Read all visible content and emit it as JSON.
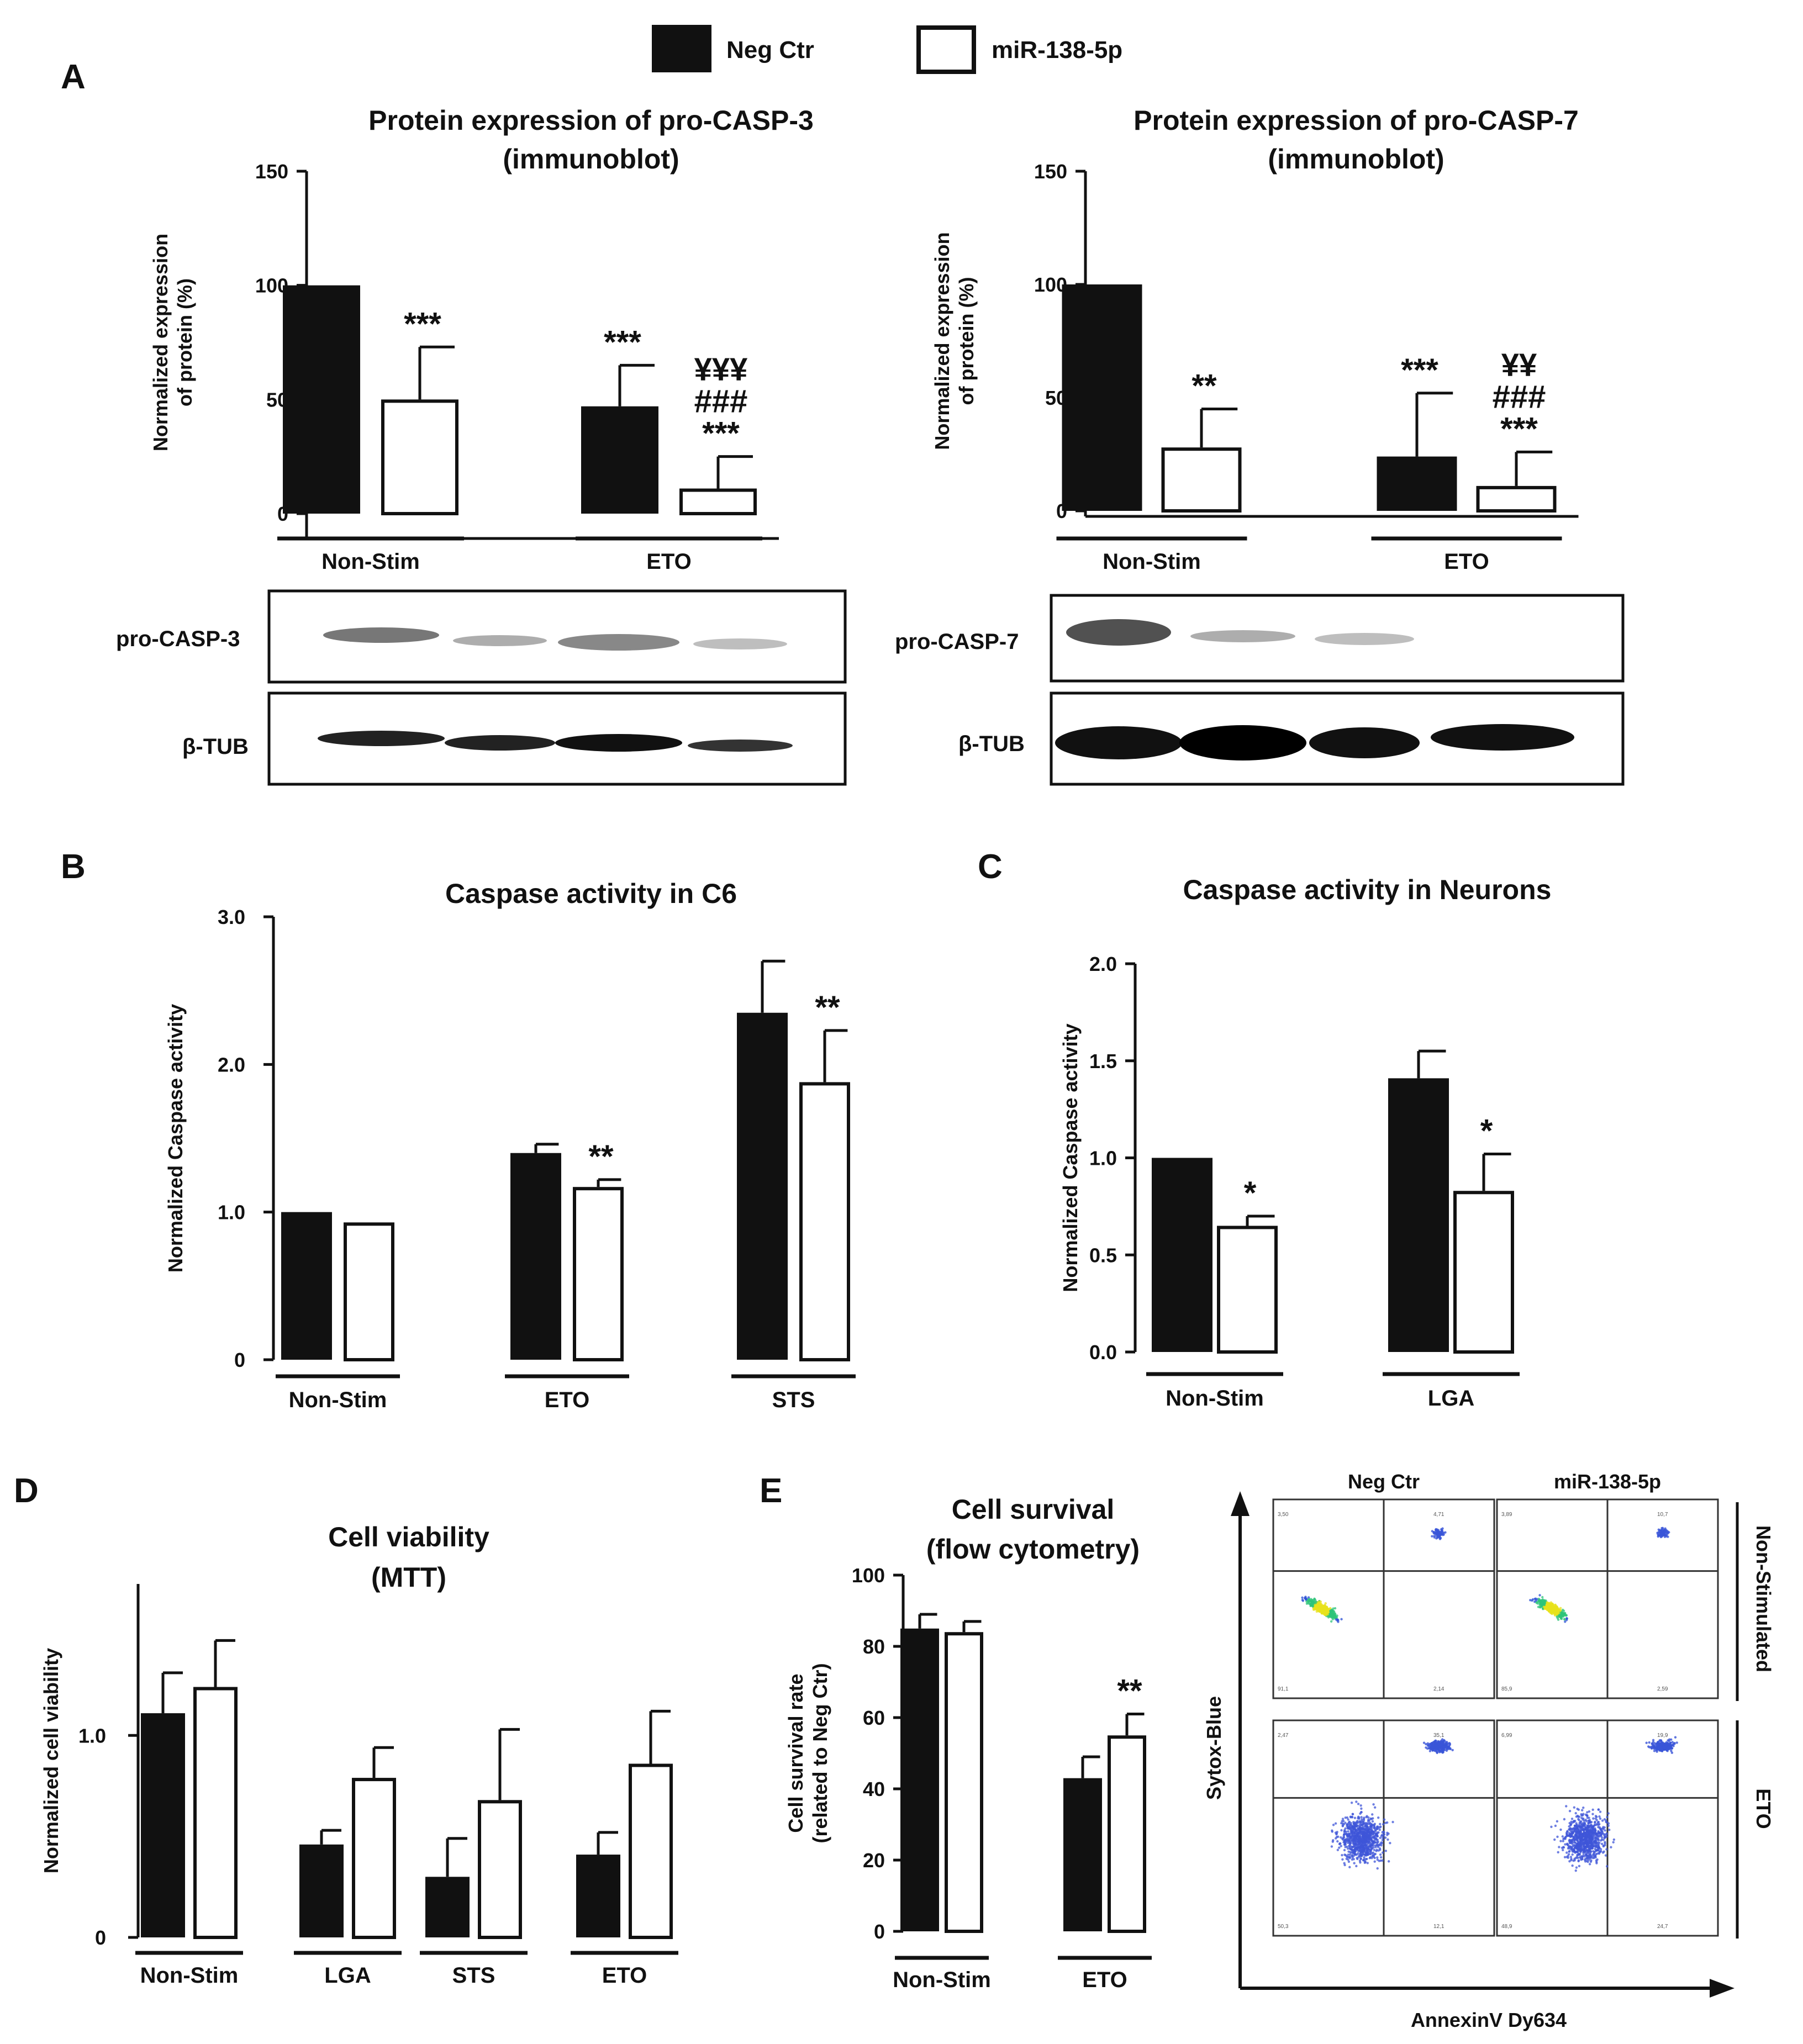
{
  "legend": [
    {
      "label": "Neg Ctr",
      "fill": "#111111"
    },
    {
      "label": "miR-138-5p",
      "fill": "#ffffff"
    }
  ],
  "colors": {
    "neg": "#111111",
    "mir": "#ffffff",
    "axis": "#111111"
  },
  "blots": {
    "casp3": {
      "label": "pro-CASP-3",
      "loading_label": "β-TUB"
    },
    "casp7": {
      "label": "pro-CASP-7",
      "loading_label": "β-TUB"
    }
  },
  "flow": {
    "col_labels": [
      "Neg Ctr",
      "miR-138-5p"
    ],
    "row_labels": [
      "Non-Stimulated",
      "ETO"
    ],
    "xaxis": "AnnexinV Dy634",
    "yaxis": "Sytox-Blue",
    "quadrants": [
      [
        "3,50",
        "4,71",
        "91,1",
        "2,14"
      ],
      [
        "3,89",
        "10,7",
        "85,9",
        "2,59"
      ],
      [
        "2,47",
        "35,1",
        "50,3",
        "12,1"
      ],
      [
        "6,99",
        "19,9",
        "48,9",
        "24,7"
      ]
    ]
  },
  "chart_data": [
    {
      "id": "A1",
      "panel_label": "A",
      "type": "bar",
      "title": [
        "Protein expression of pro-CASP-3",
        "(immunoblot)"
      ],
      "ylabel": [
        "Normalized expression",
        "of protein (%)"
      ],
      "ylim": [
        0,
        150
      ],
      "yticks": [
        0,
        50,
        100,
        150
      ],
      "categories": [
        "Non-Stim",
        "ETO"
      ],
      "series": [
        {
          "name": "Neg Ctr",
          "values": [
            100,
            47
          ],
          "errors": [
            0,
            18
          ],
          "sig": [
            "",
            "***"
          ]
        },
        {
          "name": "miR-138-5p",
          "values": [
            50,
            11
          ],
          "errors": [
            23,
            14
          ],
          "sig": [
            "***",
            "¥¥¥\n###\n***"
          ]
        }
      ]
    },
    {
      "id": "A2",
      "panel_label": "",
      "type": "bar",
      "title": [
        "Protein expression of pro-CASP-7",
        "(immunoblot)"
      ],
      "ylabel": [
        "Normalized expression",
        "of protein (%)"
      ],
      "ylim": [
        0,
        150
      ],
      "yticks": [
        0,
        50,
        100,
        150
      ],
      "categories": [
        "Non-Stim",
        "ETO"
      ],
      "series": [
        {
          "name": "Neg Ctr",
          "values": [
            100,
            24
          ],
          "errors": [
            0,
            28
          ],
          "sig": [
            "",
            "***"
          ]
        },
        {
          "name": "miR-138-5p",
          "values": [
            28,
            11
          ],
          "errors": [
            17,
            15
          ],
          "sig": [
            "**",
            "¥¥\n###\n***"
          ]
        }
      ]
    },
    {
      "id": "B",
      "panel_label": "B",
      "type": "bar",
      "title": [
        "Caspase activity in C6"
      ],
      "ylabel": [
        "Normalized Caspase activity"
      ],
      "ylim": [
        0,
        3.0
      ],
      "yticks": [
        0,
        1.0,
        2.0,
        3.0
      ],
      "ytick_labels": [
        "0",
        "1.0",
        "2.0",
        "3.0"
      ],
      "categories": [
        "Non-Stim",
        "ETO",
        "STS"
      ],
      "series": [
        {
          "name": "Neg Ctr",
          "values": [
            1.0,
            1.4,
            2.35
          ],
          "errors": [
            0,
            0.06,
            0.35
          ],
          "sig": [
            "",
            "",
            ""
          ]
        },
        {
          "name": "miR-138-5p",
          "values": [
            0.93,
            1.17,
            1.88
          ],
          "errors": [
            0,
            0.05,
            0.35
          ],
          "sig": [
            "",
            "**",
            "**"
          ]
        }
      ]
    },
    {
      "id": "C",
      "panel_label": "C",
      "type": "bar",
      "title": [
        "Caspase activity in Neurons"
      ],
      "ylabel": [
        "Normalized Caspase activity"
      ],
      "ylim": [
        0,
        2.0
      ],
      "yticks": [
        0,
        0.5,
        1.0,
        1.5,
        2.0
      ],
      "ytick_labels": [
        "0.0",
        "0.5",
        "1.0",
        "1.5",
        "2.0"
      ],
      "categories": [
        "Non-Stim",
        "LGA"
      ],
      "series": [
        {
          "name": "Neg Ctr",
          "values": [
            1.0,
            1.41
          ],
          "errors": [
            0,
            0.14
          ],
          "sig": [
            "",
            ""
          ]
        },
        {
          "name": "miR-138-5p",
          "values": [
            0.65,
            0.83
          ],
          "errors": [
            0.05,
            0.19
          ],
          "sig": [
            "*",
            "*"
          ]
        }
      ]
    },
    {
      "id": "D",
      "panel_label": "D",
      "type": "bar",
      "title": [
        "Cell viability",
        "(MTT)"
      ],
      "ylabel": [
        "Normalized cell viability"
      ],
      "ylim": [
        0,
        1.75
      ],
      "yticks": [
        0,
        1.0
      ],
      "ytick_labels": [
        "0",
        "1.0"
      ],
      "categories": [
        "Non-Stim",
        "LGA",
        "STS",
        "ETO"
      ],
      "series": [
        {
          "name": "Neg Ctr",
          "values": [
            1.11,
            0.46,
            0.3,
            0.41
          ],
          "errors": [
            0.2,
            0.07,
            0.19,
            0.11
          ],
          "sig": [
            "",
            "",
            "",
            ""
          ]
        },
        {
          "name": "miR-138-5p",
          "values": [
            1.24,
            0.79,
            0.68,
            0.86
          ],
          "errors": [
            0.23,
            0.15,
            0.35,
            0.26
          ],
          "sig": [
            "",
            "",
            "",
            ""
          ]
        }
      ]
    },
    {
      "id": "E",
      "panel_label": "E",
      "type": "bar",
      "title": [
        "Cell survival",
        "(flow cytometry)"
      ],
      "ylabel": [
        "Cell survival rate",
        "(related to Neg Ctr)"
      ],
      "ylim": [
        0,
        100
      ],
      "yticks": [
        0,
        20,
        40,
        60,
        80,
        100
      ],
      "categories": [
        "Non-Stim",
        "ETO"
      ],
      "series": [
        {
          "name": "Neg Ctr",
          "values": [
            85,
            43
          ],
          "errors": [
            4,
            6
          ],
          "sig": [
            "",
            ""
          ]
        },
        {
          "name": "miR-138-5p",
          "values": [
            84,
            55
          ],
          "errors": [
            3,
            6
          ],
          "sig": [
            "",
            "**"
          ]
        }
      ]
    }
  ]
}
